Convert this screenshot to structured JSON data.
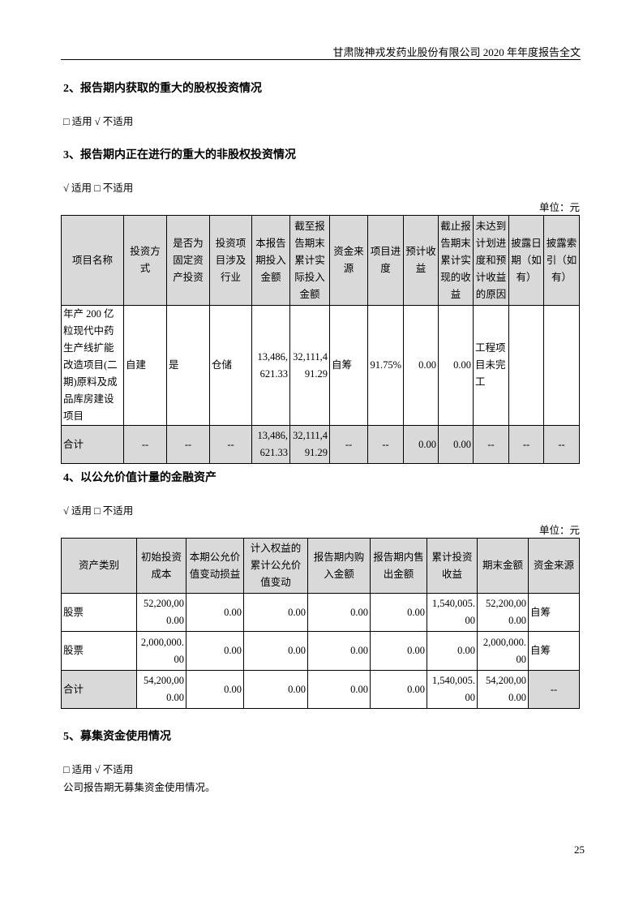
{
  "header": {
    "title": "甘肃陇神戎发药业股份有限公司 2020 年年度报告全文"
  },
  "sections": [
    {
      "title": "2、报告期内获取的重大的股权投资情况",
      "applicability": "□ 适用 √ 不适用"
    },
    {
      "title": "3、报告期内正在进行的重大的非股权投资情况",
      "applicability": "√ 适用 □ 不适用",
      "unit": "单位：元"
    },
    {
      "title": "4、以公允价值计量的金融资产",
      "applicability": "√ 适用 □ 不适用",
      "unit": "单位：元"
    },
    {
      "title": "5、募集资金使用情况",
      "applicability": "□ 适用 √ 不适用",
      "note": "公司报告期无募集资金使用情况。"
    }
  ],
  "table1": {
    "headers": [
      "项目名称",
      "投资方式",
      "是否为固定资产投资",
      "投资项目涉及行业",
      "本报告期投入金额",
      "截至报告期末累计实际投入金额",
      "资金来源",
      "项目进度",
      "预计收益",
      "截止报告期末累计实现的收益",
      "未达到计划进度和预计收益的原因",
      "披露日期（如有）",
      "披露索引（如有）"
    ],
    "rows": [
      [
        "年产 200 亿粒现代中药生产线扩能改造项目(二期)原料及成品库房建设项目",
        "自建",
        "是",
        "仓储",
        "13,486,621.33",
        "32,111,491.29",
        "自筹",
        "91.75%",
        "0.00",
        "0.00",
        "工程项目未完工",
        "",
        ""
      ],
      [
        "合计",
        "--",
        "--",
        "--",
        "13,486,621.33",
        "32,111,491.29",
        "--",
        "--",
        "0.00",
        "0.00",
        "--",
        "--",
        "--"
      ]
    ]
  },
  "table2": {
    "headers": [
      "资产类别",
      "初始投资成本",
      "本期公允价值变动损益",
      "计入权益的累计公允价值变动",
      "报告期内购入金额",
      "报告期内售出金额",
      "累计投资收益",
      "期末金额",
      "资金来源"
    ],
    "rows": [
      [
        "股票",
        "52,200,000.00",
        "0.00",
        "0.00",
        "0.00",
        "0.00",
        "1,540,005.00",
        "52,200,000.00",
        "自筹"
      ],
      [
        "股票",
        "2,000,000.00",
        "0.00",
        "0.00",
        "0.00",
        "0.00",
        "0.00",
        "2,000,000.00",
        "自筹"
      ],
      [
        "合计",
        "54,200,000.00",
        "0.00",
        "0.00",
        "0.00",
        "0.00",
        "1,540,005.00",
        "54,200,000.00",
        "--"
      ]
    ]
  },
  "footer": {
    "page_number": "25"
  }
}
